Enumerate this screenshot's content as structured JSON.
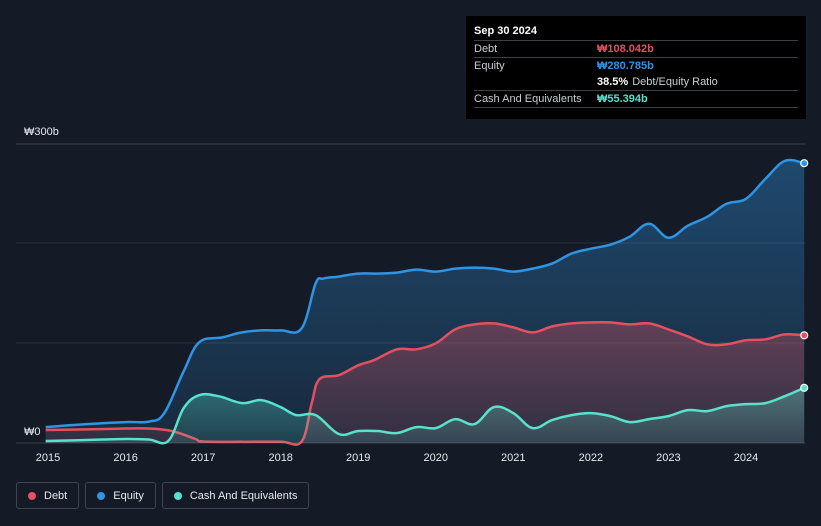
{
  "chart_data": {
    "type": "area",
    "x_ticks": [
      "2015",
      "2016",
      "2017",
      "2018",
      "2019",
      "2020",
      "2021",
      "2022",
      "2023",
      "2024"
    ],
    "y_labels": {
      "top": "₩300b",
      "zero": "₩0"
    },
    "ylim": [
      0,
      300
    ],
    "colors": {
      "debt": "#e4505f",
      "equity": "#2f94e4",
      "cash": "#58e1cc",
      "background": "#151b26"
    },
    "series": [
      {
        "name": "Debt",
        "key": "debt",
        "points": [
          [
            2014.97,
            13
          ],
          [
            2015.4,
            13.5
          ],
          [
            2016.0,
            14.5
          ],
          [
            2016.3,
            14.5
          ],
          [
            2016.6,
            12
          ],
          [
            2016.9,
            4
          ],
          [
            2017.0,
            1.5
          ],
          [
            2017.5,
            1.2
          ],
          [
            2018.0,
            1.2
          ],
          [
            2018.27,
            1.5
          ],
          [
            2018.4,
            40
          ],
          [
            2018.5,
            64
          ],
          [
            2018.75,
            68
          ],
          [
            2019.0,
            78
          ],
          [
            2019.2,
            83
          ],
          [
            2019.5,
            94
          ],
          [
            2019.75,
            94
          ],
          [
            2020.0,
            100
          ],
          [
            2020.25,
            114
          ],
          [
            2020.5,
            119
          ],
          [
            2020.75,
            120
          ],
          [
            2021.0,
            116
          ],
          [
            2021.25,
            111
          ],
          [
            2021.5,
            117
          ],
          [
            2021.75,
            120
          ],
          [
            2022.0,
            121
          ],
          [
            2022.25,
            121
          ],
          [
            2022.5,
            119
          ],
          [
            2022.75,
            120
          ],
          [
            2023.0,
            114
          ],
          [
            2023.25,
            107
          ],
          [
            2023.5,
            99
          ],
          [
            2023.75,
            99
          ],
          [
            2024.0,
            103
          ],
          [
            2024.25,
            104
          ],
          [
            2024.5,
            109
          ],
          [
            2024.75,
            108.042
          ]
        ]
      },
      {
        "name": "Equity",
        "key": "equity",
        "points": [
          [
            2014.97,
            16
          ],
          [
            2015.5,
            19
          ],
          [
            2016.0,
            21
          ],
          [
            2016.3,
            21.5
          ],
          [
            2016.5,
            30
          ],
          [
            2016.75,
            72
          ],
          [
            2016.95,
            101
          ],
          [
            2017.25,
            106
          ],
          [
            2017.5,
            111
          ],
          [
            2017.75,
            113
          ],
          [
            2018.0,
            113
          ],
          [
            2018.27,
            115
          ],
          [
            2018.45,
            160
          ],
          [
            2018.55,
            165
          ],
          [
            2018.75,
            167
          ],
          [
            2019.0,
            170
          ],
          [
            2019.25,
            170
          ],
          [
            2019.5,
            171
          ],
          [
            2019.75,
            174
          ],
          [
            2020.0,
            172
          ],
          [
            2020.25,
            175
          ],
          [
            2020.5,
            176
          ],
          [
            2020.75,
            175
          ],
          [
            2021.0,
            172
          ],
          [
            2021.25,
            175
          ],
          [
            2021.5,
            180
          ],
          [
            2021.75,
            190
          ],
          [
            2022.0,
            195
          ],
          [
            2022.25,
            199
          ],
          [
            2022.5,
            207
          ],
          [
            2022.75,
            220
          ],
          [
            2023.0,
            206
          ],
          [
            2023.25,
            218
          ],
          [
            2023.5,
            227
          ],
          [
            2023.75,
            240
          ],
          [
            2024.0,
            245
          ],
          [
            2024.25,
            265
          ],
          [
            2024.5,
            283
          ],
          [
            2024.75,
            280.785
          ]
        ]
      },
      {
        "name": "Cash And Equivalents",
        "key": "cash",
        "points": [
          [
            2014.97,
            2
          ],
          [
            2015.5,
            3
          ],
          [
            2016.0,
            4
          ],
          [
            2016.3,
            3.5
          ],
          [
            2016.55,
            2
          ],
          [
            2016.75,
            35
          ],
          [
            2016.95,
            48
          ],
          [
            2017.2,
            47
          ],
          [
            2017.5,
            40
          ],
          [
            2017.75,
            43
          ],
          [
            2018.0,
            36
          ],
          [
            2018.2,
            28
          ],
          [
            2018.45,
            28
          ],
          [
            2018.75,
            9
          ],
          [
            2019.0,
            12
          ],
          [
            2019.25,
            12
          ],
          [
            2019.5,
            10
          ],
          [
            2019.75,
            16
          ],
          [
            2020.0,
            15
          ],
          [
            2020.25,
            24
          ],
          [
            2020.5,
            19
          ],
          [
            2020.75,
            36
          ],
          [
            2021.0,
            30
          ],
          [
            2021.25,
            15
          ],
          [
            2021.5,
            23
          ],
          [
            2021.75,
            28
          ],
          [
            2022.0,
            30
          ],
          [
            2022.25,
            27
          ],
          [
            2022.5,
            21
          ],
          [
            2022.75,
            24
          ],
          [
            2023.0,
            27
          ],
          [
            2023.25,
            33
          ],
          [
            2023.5,
            32
          ],
          [
            2023.75,
            37
          ],
          [
            2024.0,
            39
          ],
          [
            2024.25,
            40
          ],
          [
            2024.5,
            47
          ],
          [
            2024.75,
            55.394
          ]
        ]
      }
    ],
    "legend": [
      {
        "key": "debt",
        "label": "Debt"
      },
      {
        "key": "equity",
        "label": "Equity"
      },
      {
        "key": "cash",
        "label": "Cash And Equivalents"
      }
    ]
  },
  "tooltip": {
    "date": "Sep 30 2024",
    "debt_label": "Debt",
    "debt_value": "₩108.042b",
    "equity_label": "Equity",
    "equity_value": "₩280.785b",
    "ratio_value": "38.5%",
    "ratio_label": "Debt/Equity Ratio",
    "cash_label": "Cash And Equivalents",
    "cash_value": "₩55.394b"
  }
}
